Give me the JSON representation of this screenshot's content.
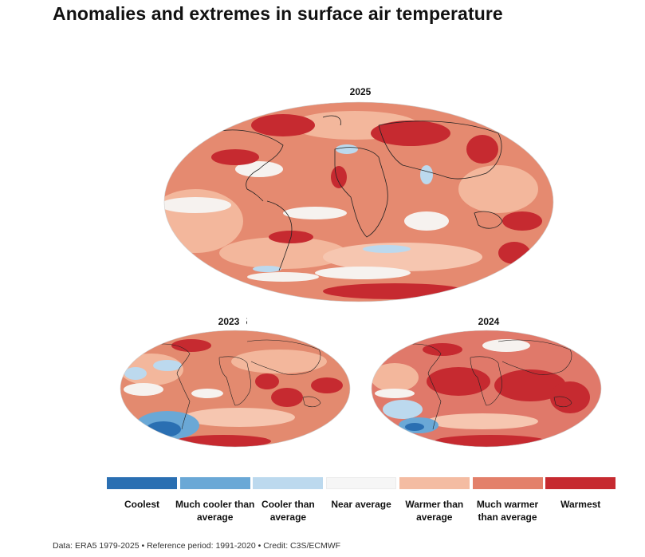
{
  "title": "Anomalies and extremes in surface air temperature",
  "maps": [
    {
      "year": "2025"
    },
    {
      "year": "2023"
    },
    {
      "year": "2024"
    }
  ],
  "legend": [
    {
      "label": "Coolest",
      "color": "#2a6fb2"
    },
    {
      "label": "Much cooler than average",
      "color": "#6aa8d6"
    },
    {
      "label": "Cooler than average",
      "color": "#bcd9ee"
    },
    {
      "label": "Near average",
      "color": "#f6f6f6"
    },
    {
      "label": "Warmer than average",
      "color": "#f4bca2"
    },
    {
      "label": "Much warmer than average",
      "color": "#e3806a"
    },
    {
      "label": "Warmest",
      "color": "#c62a30"
    }
  ],
  "footer": "Data: ERA5 1979-2025 • Reference period: 1991-2020 • Credit: C3S/ECMWF"
}
